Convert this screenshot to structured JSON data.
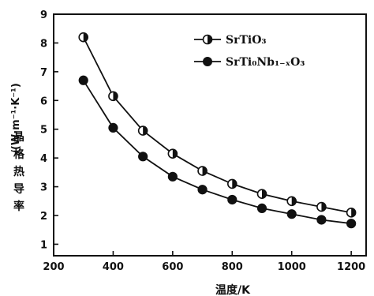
{
  "chart_data": {
    "type": "line",
    "xlabel": "温度/K",
    "ylabel_cn": [
      "晶",
      "格",
      "热",
      "导",
      "率"
    ],
    "ylabel_unit": "/(W·m⁻¹·K⁻¹)",
    "xlim": [
      200,
      1250
    ],
    "ylim": [
      0.6,
      9
    ],
    "xticks": [
      200,
      400,
      600,
      800,
      1000,
      1200
    ],
    "yticks": [
      1,
      2,
      3,
      4,
      5,
      6,
      7,
      8,
      9
    ],
    "legend_position": "top-right",
    "grid": false,
    "series": [
      {
        "name": "SrTiO₃",
        "marker": "half-filled-circle",
        "color": "#111111",
        "x": [
          300,
          400,
          500,
          600,
          700,
          800,
          900,
          1000,
          1100,
          1200
        ],
        "y": [
          8.2,
          6.15,
          4.95,
          4.15,
          3.55,
          3.1,
          2.75,
          2.5,
          2.3,
          2.1
        ]
      },
      {
        "name": "SrTi₀Nb₁₋ₓO₃",
        "marker": "filled-circle",
        "color": "#111111",
        "x": [
          300,
          400,
          500,
          600,
          700,
          800,
          900,
          1000,
          1100,
          1200
        ],
        "y": [
          6.7,
          5.05,
          4.05,
          3.35,
          2.9,
          2.55,
          2.25,
          2.05,
          1.85,
          1.72
        ]
      }
    ]
  }
}
